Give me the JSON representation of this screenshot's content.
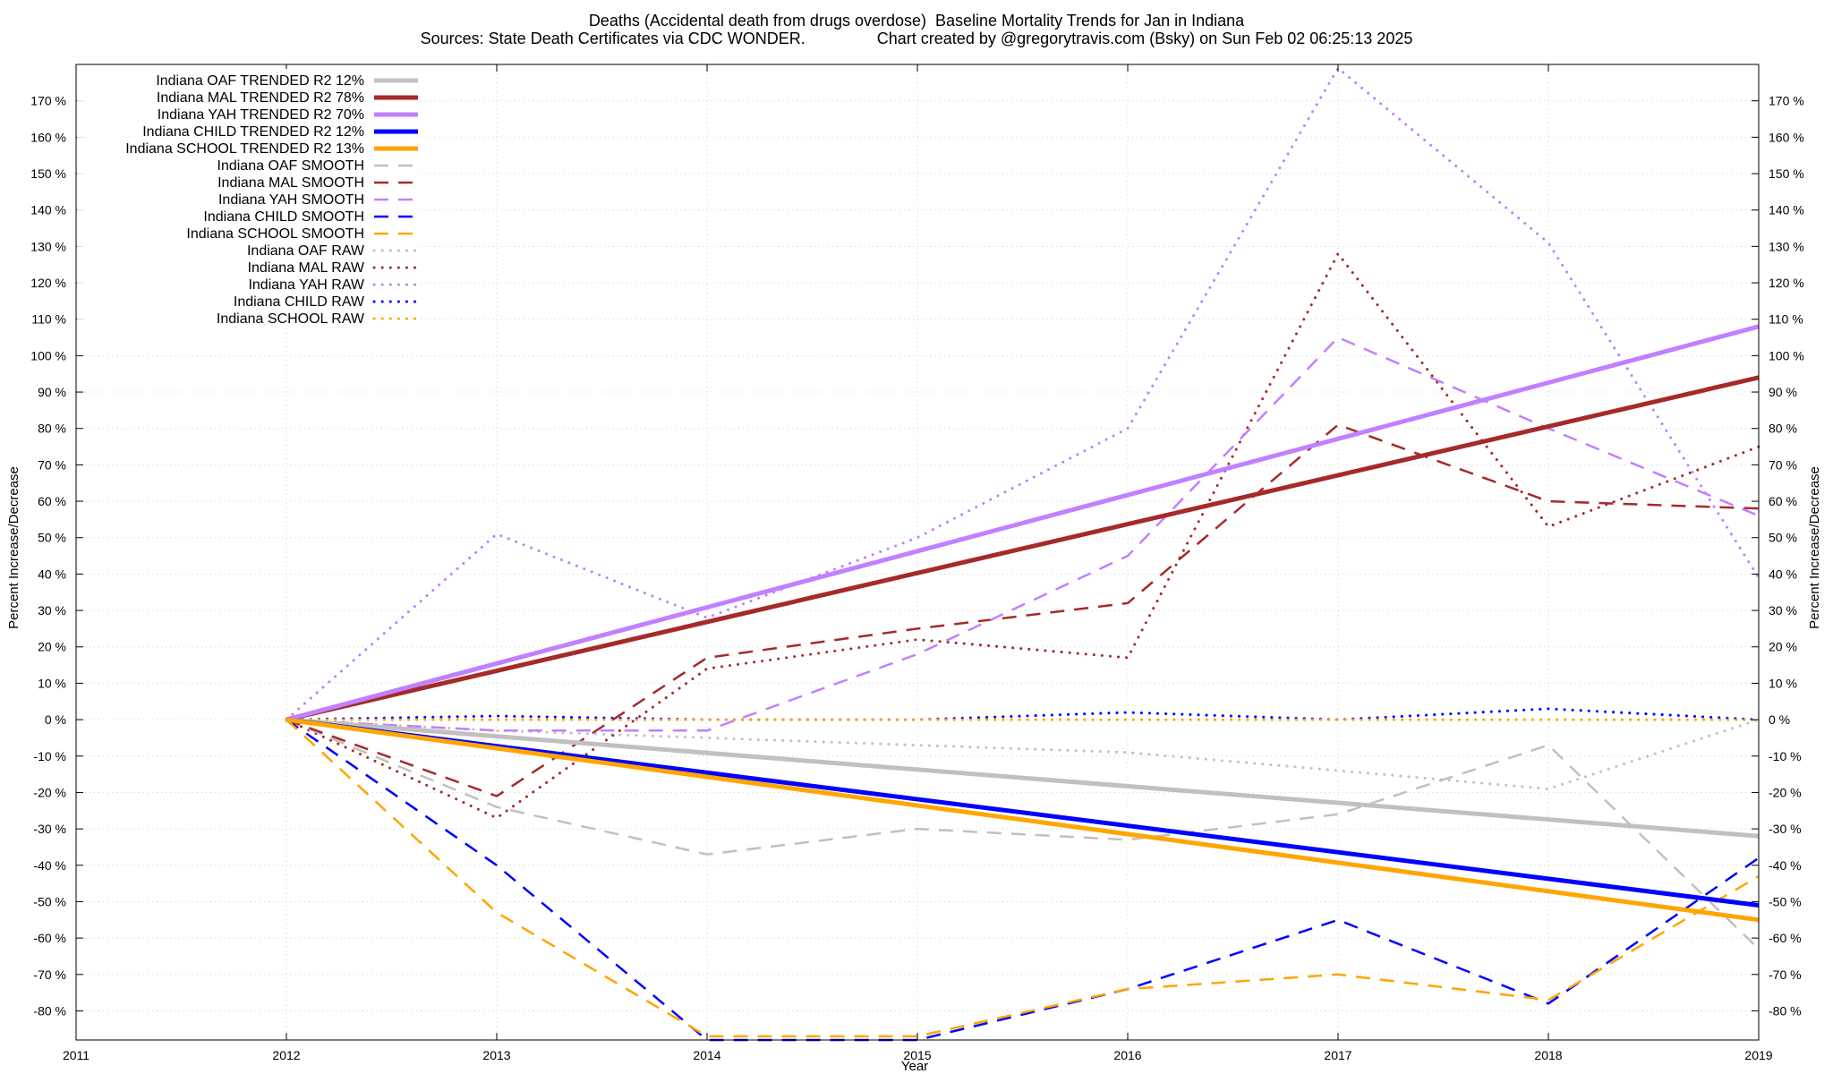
{
  "chart_data": {
    "type": "line",
    "title": "Deaths (Accidental death from drugs overdose)  Baseline Mortality Trends for Jan in Indiana",
    "subtitle": "Sources: State Death Certificates via CDC WONDER.                Chart created by @gregorytravis.com (Bsky) on Sun Feb 02 06:25:13 2025",
    "xlabel": "Year",
    "ylabel": "Percent Increase/Decrease",
    "y2label": "Percent Increase/Decrease",
    "xlim": [
      2011,
      2019
    ],
    "ylim": [
      -88,
      180
    ],
    "x_ticks": [
      "2011",
      "2012",
      "2013",
      "2014",
      "2015",
      "2016",
      "2017",
      "2018",
      "2019"
    ],
    "y_ticks": [
      "170 %",
      "160 %",
      "150 %",
      "140 %",
      "130 %",
      "120 %",
      "110 %",
      "100 %",
      "90 %",
      "80 %",
      "70 %",
      "60 %",
      "50 %",
      "40 %",
      "30 %",
      "20 %",
      "10 %",
      "0 %",
      "-10 %",
      "-20 %",
      "-30 %",
      "-40 %",
      "-50 %",
      "-60 %",
      "-70 %",
      "-80 %"
    ],
    "grid": true,
    "legend_position": "top-left",
    "colors": {
      "oaf": "#c0c0c0",
      "mal": "#a52a2a",
      "yah": "#c080ff",
      "child": "#0000ff",
      "school": "#ffa500"
    },
    "series": [
      {
        "name": "Indiana OAF TRENDED R2  12%",
        "color": "#c0c0c0",
        "style": "solid",
        "x": [
          2012,
          2019
        ],
        "values": [
          0,
          -32
        ]
      },
      {
        "name": "Indiana MAL TRENDED R2  78%",
        "color": "#a52a2a",
        "style": "solid",
        "x": [
          2012,
          2019
        ],
        "values": [
          0,
          94
        ]
      },
      {
        "name": "Indiana YAH TRENDED R2  70%",
        "color": "#c080ff",
        "style": "solid",
        "x": [
          2012,
          2019
        ],
        "values": [
          0,
          108
        ]
      },
      {
        "name": "Indiana CHILD TRENDED R2  12%",
        "color": "#0000ff",
        "style": "solid",
        "x": [
          2012,
          2019
        ],
        "values": [
          0,
          -51
        ]
      },
      {
        "name": "Indiana SCHOOL TRENDED R2  13%",
        "color": "#ffa500",
        "style": "solid",
        "x": [
          2012,
          2019
        ],
        "values": [
          0,
          -55
        ]
      },
      {
        "name": "Indiana OAF SMOOTH",
        "color": "#c0c0c0",
        "style": "dashed",
        "x": [
          2012,
          2013,
          2014,
          2015,
          2016,
          2017,
          2018,
          2019
        ],
        "values": [
          0,
          -24,
          -37,
          -30,
          -33,
          -26,
          -7,
          -63
        ]
      },
      {
        "name": "Indiana MAL SMOOTH",
        "color": "#a52a2a",
        "style": "dashed",
        "x": [
          2012,
          2013,
          2014,
          2015,
          2016,
          2017,
          2018,
          2019
        ],
        "values": [
          0,
          -21,
          17,
          25,
          32,
          81,
          60,
          58
        ]
      },
      {
        "name": "Indiana YAH SMOOTH",
        "color": "#c080ff",
        "style": "dashed",
        "x": [
          2012,
          2013,
          2014,
          2015,
          2016,
          2017,
          2018,
          2019
        ],
        "values": [
          0,
          -3,
          -3,
          18,
          45,
          105,
          80,
          56
        ]
      },
      {
        "name": "Indiana CHILD SMOOTH",
        "color": "#0000ff",
        "style": "dashed",
        "x": [
          2012,
          2013,
          2014,
          2015,
          2016,
          2017,
          2018,
          2019
        ],
        "values": [
          0,
          -40,
          -88,
          -88,
          -74,
          -55,
          -78,
          -38
        ]
      },
      {
        "name": "Indiana SCHOOL SMOOTH",
        "color": "#ffa500",
        "style": "dashed",
        "x": [
          2012,
          2013,
          2014,
          2015,
          2016,
          2017,
          2018,
          2019
        ],
        "values": [
          0,
          -53,
          -87,
          -87,
          -74,
          -70,
          -77,
          -43
        ]
      },
      {
        "name": "Indiana OAF RAW",
        "color": "#c0c0c0",
        "style": "dotted",
        "x": [
          2012,
          2013,
          2014,
          2015,
          2016,
          2017,
          2018,
          2019
        ],
        "values": [
          0,
          -3,
          -5,
          -7,
          -9,
          -14,
          -19,
          0
        ]
      },
      {
        "name": "Indiana MAL RAW",
        "color": "#a52a2a",
        "style": "dotted",
        "x": [
          2012,
          2013,
          2014,
          2015,
          2016,
          2017,
          2018,
          2019
        ],
        "values": [
          0,
          -27,
          14,
          22,
          17,
          128,
          53,
          75
        ]
      },
      {
        "name": "Indiana YAH RAW",
        "color": "#c080ff",
        "style": "dotted",
        "x": [
          2012,
          2013,
          2014,
          2015,
          2016,
          2017,
          2018,
          2019
        ],
        "values": [
          0,
          51,
          28,
          50,
          80,
          179,
          131,
          39
        ]
      },
      {
        "name": "Indiana CHILD RAW",
        "color": "#0000ff",
        "style": "dotted",
        "x": [
          2012,
          2013,
          2014,
          2015,
          2016,
          2017,
          2018,
          2019
        ],
        "values": [
          0,
          1,
          0,
          0,
          2,
          0,
          3,
          0
        ]
      },
      {
        "name": "Indiana SCHOOL RAW",
        "color": "#ffa500",
        "style": "dotted",
        "x": [
          2012,
          2013,
          2014,
          2015,
          2016,
          2017,
          2018,
          2019
        ],
        "values": [
          0,
          0,
          0,
          0,
          0,
          0,
          0,
          0
        ]
      }
    ]
  }
}
